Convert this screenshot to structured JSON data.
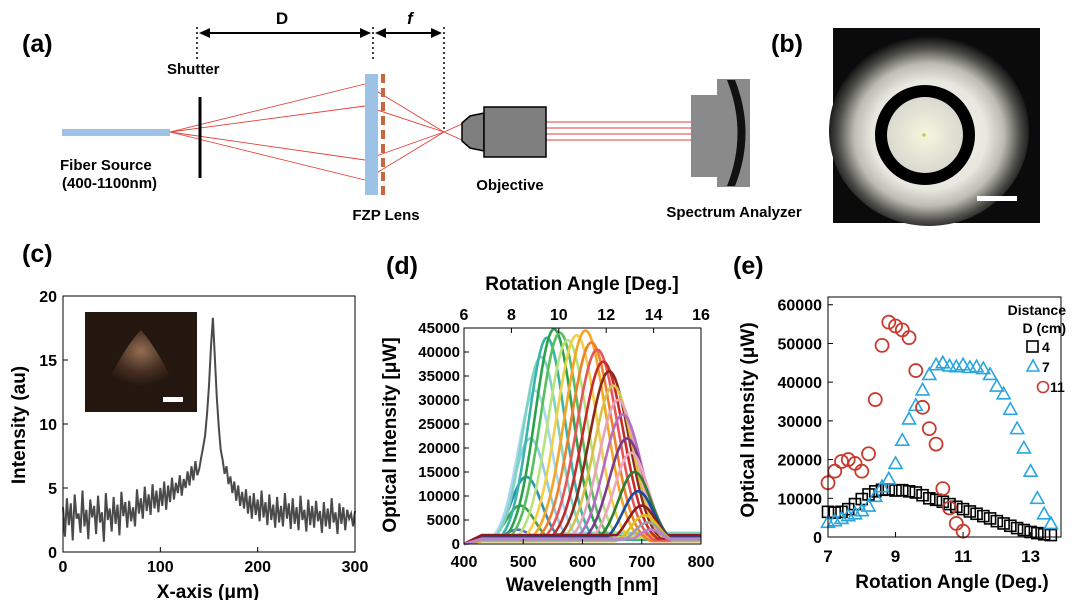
{
  "panels": {
    "a": {
      "label": "(a)",
      "distance_label": "D",
      "focal_label": "f",
      "shutter_label": "Shutter",
      "fiber_label_line1": "Fiber Source",
      "fiber_label_line2": "(400-1100nm)",
      "fzp_label": "FZP Lens",
      "objective_label": "Objective",
      "analyzer_label": "Spectrum Analyzer"
    },
    "b": {
      "label": "(b)"
    },
    "c": {
      "label": "(c)"
    },
    "d": {
      "label": "(d)"
    },
    "e": {
      "label": "(e)"
    }
  },
  "chart_data": [
    {
      "id": "c",
      "type": "line",
      "xlabel": "X-axis (μm)",
      "ylabel": "Intensity (au)",
      "xlim": [
        0,
        300
      ],
      "ylim": [
        0,
        20
      ],
      "xticks": [
        0,
        100,
        200,
        300
      ],
      "yticks": [
        0,
        5,
        10,
        15,
        20
      ],
      "series": [
        {
          "color": "#4a4a4a",
          "peak_x": 153,
          "peak_y": 18.3,
          "x": [
            0,
            2,
            4,
            6,
            8,
            10,
            12,
            14,
            16,
            18,
            20,
            22,
            24,
            26,
            28,
            30,
            32,
            34,
            36,
            38,
            40,
            42,
            44,
            46,
            48,
            50,
            52,
            54,
            56,
            58,
            60,
            62,
            64,
            66,
            68,
            70,
            72,
            74,
            76,
            78,
            80,
            82,
            84,
            86,
            88,
            90,
            92,
            94,
            96,
            98,
            100,
            102,
            104,
            106,
            108,
            110,
            112,
            114,
            116,
            118,
            120,
            122,
            124,
            126,
            128,
            130,
            132,
            134,
            136,
            138,
            140,
            142,
            144,
            146,
            148,
            150,
            152,
            154,
            156,
            158,
            160,
            162,
            164,
            166,
            168,
            170,
            172,
            174,
            176,
            178,
            180,
            182,
            184,
            186,
            188,
            190,
            192,
            194,
            196,
            198,
            200,
            202,
            204,
            206,
            208,
            210,
            212,
            214,
            216,
            218,
            220,
            222,
            224,
            226,
            228,
            230,
            232,
            234,
            236,
            238,
            240,
            242,
            244,
            246,
            248,
            250,
            252,
            254,
            256,
            258,
            260,
            262,
            264,
            266,
            268,
            270,
            272,
            274,
            276,
            278,
            280,
            282,
            284,
            286,
            288,
            290,
            292,
            294,
            296,
            298,
            300
          ],
          "y": [
            3.5,
            1.2,
            4.2,
            2.1,
            3.8,
            0.9,
            4.5,
            2.6,
            3.0,
            1.5,
            4.8,
            2.0,
            3.3,
            1.0,
            4.1,
            2.7,
            3.6,
            1.4,
            4.4,
            2.3,
            3.1,
            0.8,
            4.6,
            2.5,
            3.4,
            1.6,
            4.3,
            2.2,
            3.7,
            1.3,
            4.7,
            2.8,
            3.9,
            1.9,
            4.0,
            2.4,
            3.5,
            2.0,
            4.9,
            3.0,
            4.2,
            2.6,
            5.1,
            3.2,
            4.5,
            2.9,
            5.3,
            3.4,
            4.8,
            3.1,
            5.0,
            3.6,
            5.5,
            3.3,
            5.2,
            3.9,
            5.8,
            4.1,
            5.4,
            4.6,
            6.0,
            4.4,
            5.7,
            5.0,
            6.3,
            5.2,
            6.7,
            5.6,
            7.1,
            6.0,
            6.5,
            7.4,
            8.2,
            9.1,
            10.8,
            13.0,
            16.0,
            18.3,
            15.2,
            12.1,
            9.8,
            8.0,
            7.2,
            6.1,
            6.7,
            5.3,
            5.9,
            4.6,
            5.5,
            4.0,
            5.2,
            3.6,
            4.7,
            3.4,
            4.9,
            3.0,
            4.4,
            2.6,
            4.6,
            2.9,
            4.1,
            2.4,
            4.8,
            2.7,
            3.9,
            2.1,
            4.5,
            2.5,
            3.7,
            1.9,
            4.3,
            2.3,
            3.6,
            2.0,
            4.6,
            2.6,
            3.8,
            1.8,
            4.2,
            2.2,
            3.5,
            1.7,
            4.4,
            2.5,
            3.3,
            1.6,
            4.1,
            2.1,
            3.6,
            1.9,
            4.0,
            2.4,
            3.2,
            1.5,
            3.9,
            2.0,
            3.4,
            1.8,
            4.2,
            2.3,
            3.1,
            1.4,
            3.8,
            2.2,
            3.5,
            1.7,
            3.3,
            2.6,
            3.0,
            2.0,
            3.2
          ]
        }
      ]
    },
    {
      "id": "d",
      "type": "line",
      "xlabel": "Wavelength [nm]",
      "ylabel": "Optical Intensity [μW]",
      "x2label": "Rotation Angle [Deg.]",
      "xlim": [
        400,
        800
      ],
      "ylim": [
        0,
        45000
      ],
      "x2lim": [
        6,
        16
      ],
      "xticks": [
        400,
        500,
        600,
        700,
        800
      ],
      "x2ticks": [
        6,
        8,
        10,
        12,
        14,
        16
      ],
      "yticks": [
        0,
        5000,
        10000,
        15000,
        20000,
        25000,
        30000,
        35000,
        40000,
        45000
      ],
      "series": [
        {
          "color": "#5b6fd1",
          "center": 490,
          "width": 32,
          "peak": 3000
        },
        {
          "color": "#3fa34d",
          "center": 495,
          "width": 34,
          "peak": 8000
        },
        {
          "color": "#2a8fb8",
          "center": 505,
          "width": 36,
          "peak": 14000
        },
        {
          "color": "#8ecbe6",
          "center": 512,
          "width": 38,
          "peak": 22000
        },
        {
          "color": "#a8d8f0",
          "center": 520,
          "width": 40,
          "peak": 32000
        },
        {
          "color": "#7fd3c4",
          "center": 530,
          "width": 42,
          "peak": 39000
        },
        {
          "color": "#37b6a8",
          "center": 540,
          "width": 42,
          "peak": 43000
        },
        {
          "color": "#2ca24a",
          "center": 552,
          "width": 44,
          "peak": 44800
        },
        {
          "color": "#56c05c",
          "center": 562,
          "width": 45,
          "peak": 44000
        },
        {
          "color": "#b9e27a",
          "center": 575,
          "width": 46,
          "peak": 42500
        },
        {
          "color": "#f1d046",
          "center": 590,
          "width": 47,
          "peak": 43500
        },
        {
          "color": "#f6a623",
          "center": 605,
          "width": 48,
          "peak": 44500
        },
        {
          "color": "#f07f2b",
          "center": 615,
          "width": 48,
          "peak": 42000
        },
        {
          "color": "#e85757",
          "center": 625,
          "width": 48,
          "peak": 40500
        },
        {
          "color": "#c92a2a",
          "center": 635,
          "width": 48,
          "peak": 38000
        },
        {
          "color": "#8b2a1a",
          "center": 645,
          "width": 47,
          "peak": 36000
        },
        {
          "color": "#d6c24a",
          "center": 652,
          "width": 46,
          "peak": 33000
        },
        {
          "color": "#e6a4b8",
          "center": 660,
          "width": 45,
          "peak": 30000
        },
        {
          "color": "#b46fc4",
          "center": 668,
          "width": 44,
          "peak": 27000
        },
        {
          "color": "#7a3b8a",
          "center": 675,
          "width": 42,
          "peak": 22000
        },
        {
          "color": "#f0a6c0",
          "center": 682,
          "width": 40,
          "peak": 19000
        },
        {
          "color": "#2e7d32",
          "center": 688,
          "width": 38,
          "peak": 15000
        },
        {
          "color": "#1a4ba0",
          "center": 694,
          "width": 36,
          "peak": 11000
        },
        {
          "color": "#8a1c1c",
          "center": 700,
          "width": 34,
          "peak": 8000
        },
        {
          "color": "#e0c020",
          "center": 705,
          "width": 32,
          "peak": 6000
        },
        {
          "color": "#9aa0a6",
          "center": 710,
          "width": 30,
          "peak": 4500
        },
        {
          "color": "#c07fd0",
          "center": 715,
          "width": 28,
          "peak": 3000
        }
      ]
    },
    {
      "id": "e",
      "type": "scatter",
      "xlabel": "Rotation  Angle (Deg.)",
      "ylabel": "Optical Intensity (μW)",
      "xlim": [
        7,
        13.9
      ],
      "ylim": [
        0,
        62000
      ],
      "xticks": [
        7,
        9,
        11,
        13
      ],
      "yticks": [
        0,
        10000,
        20000,
        30000,
        40000,
        50000,
        60000
      ],
      "legend": {
        "title_line1": "Distance",
        "title_line2": "D (cm)",
        "position": "top-right"
      },
      "series": [
        {
          "name": "4",
          "marker": "square",
          "color": "#000000",
          "x": [
            7.0,
            7.2,
            7.4,
            7.6,
            7.8,
            8.0,
            8.2,
            8.4,
            8.6,
            8.8,
            9.0,
            9.2,
            9.4,
            9.6,
            9.8,
            10.0,
            10.2,
            10.4,
            10.6,
            10.8,
            11.0,
            11.2,
            11.4,
            11.6,
            11.8,
            12.0,
            12.2,
            12.4,
            12.6,
            12.8,
            13.0,
            13.2,
            13.4,
            13.6
          ],
          "y": [
            6500,
            6300,
            6500,
            7200,
            8500,
            9800,
            11000,
            11800,
            12200,
            12300,
            12000,
            12100,
            11800,
            11500,
            10800,
            10000,
            9600,
            9100,
            8500,
            7800,
            7200,
            6600,
            6000,
            5400,
            4800,
            4100,
            3500,
            2900,
            2300,
            1800,
            1300,
            1000,
            700,
            500
          ]
        },
        {
          "name": "7",
          "marker": "triangle",
          "color": "#2aa6df",
          "x": [
            7.0,
            7.2,
            7.4,
            7.6,
            7.8,
            8.0,
            8.2,
            8.4,
            8.6,
            8.8,
            9.0,
            9.2,
            9.4,
            9.6,
            9.8,
            10.0,
            10.2,
            10.4,
            10.6,
            10.8,
            11.0,
            11.2,
            11.4,
            11.6,
            11.8,
            12.0,
            12.2,
            12.4,
            12.6,
            12.8,
            13.0,
            13.2,
            13.4,
            13.6
          ],
          "y": [
            3800,
            4200,
            4800,
            5500,
            6000,
            6800,
            8000,
            10500,
            13000,
            15000,
            19000,
            25000,
            30500,
            34000,
            38000,
            42000,
            44500,
            45000,
            44200,
            44000,
            44500,
            43800,
            44000,
            43500,
            42000,
            39000,
            37000,
            33000,
            28000,
            23000,
            17000,
            10000,
            6000,
            3500
          ]
        },
        {
          "name": "11",
          "marker": "circle",
          "color": "#c93a2e",
          "x": [
            7.0,
            7.2,
            7.4,
            7.6,
            7.8,
            8.0,
            8.2,
            8.4,
            8.6,
            8.8,
            9.0,
            9.2,
            9.4,
            9.6,
            9.8,
            10.0,
            10.2,
            10.4,
            10.6,
            10.8,
            11.0
          ],
          "y": [
            14000,
            17000,
            19500,
            20000,
            19000,
            17000,
            21500,
            35500,
            49500,
            55500,
            54500,
            53500,
            51500,
            43000,
            33500,
            28000,
            24000,
            12500,
            7500,
            3500,
            1500
          ]
        }
      ]
    }
  ]
}
